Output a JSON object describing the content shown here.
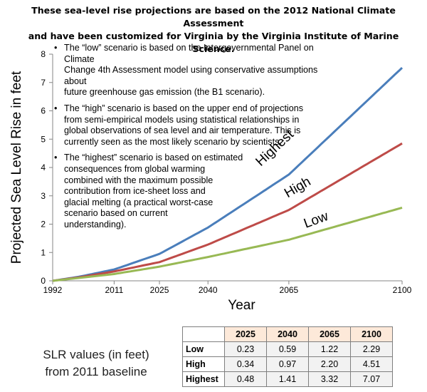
{
  "header": {
    "line1": "These sea-level rise projections are based on the 2012 National Climate Assessment",
    "line2": "and have been customized for Virginia by the Virginia Institute of Marine Science."
  },
  "notes": [
    {
      "bullet": "•",
      "text": "The “low” scenario is based on the Intergovernmental Panel on Climate\nChange 4th Assessment model using conservative assumptions about\nfuture greenhouse gas emission (the B1 scenario)."
    },
    {
      "bullet": "•",
      "text": "The “high” scenario is based on the upper end of projections\nfrom semi-empirical models using statistical relationships in\nglobal observations of sea level and air temperature. This is\ncurrently seen as the most likely scenario by scientists."
    },
    {
      "bullet": "•",
      "text": "The “highest” scenario is based on estimated\nconsequences from global warming\ncombined with the maximum possible\ncontribution from ice-sheet loss and\nglacial melting (a practical worst-case\n scenario based on current\nunderstanding)."
    }
  ],
  "chart_data": {
    "type": "line",
    "xlabel": "Year",
    "ylabel": "Projected Sea Level Rise in feet",
    "x_ticks": [
      "1992",
      "2011",
      "2025",
      "2040",
      "2065",
      "2100"
    ],
    "x_tick_years": [
      1992,
      2011,
      2025,
      2040,
      2065,
      2100
    ],
    "ylim": [
      0,
      8
    ],
    "y_ticks": [
      0,
      1,
      2,
      3,
      4,
      5,
      6,
      7,
      8
    ],
    "grid": false,
    "series": [
      {
        "name": "Highest",
        "color": "#4a7ebb",
        "x": [
          1992,
          2000,
          2011,
          2025,
          2040,
          2065,
          2100
        ],
        "y": [
          0,
          0.14,
          0.4,
          0.95,
          1.88,
          3.75,
          7.52
        ]
      },
      {
        "name": "High",
        "color": "#be4b48",
        "x": [
          1992,
          2000,
          2011,
          2025,
          2040,
          2065,
          2100
        ],
        "y": [
          0,
          0.12,
          0.33,
          0.66,
          1.28,
          2.5,
          4.85
        ]
      },
      {
        "name": "Low",
        "color": "#98b954",
        "x": [
          1992,
          2000,
          2011,
          2025,
          2040,
          2065,
          2100
        ],
        "y": [
          0,
          0.1,
          0.24,
          0.5,
          0.84,
          1.45,
          2.58
        ]
      }
    ]
  },
  "footer": {
    "line1": "SLR values (in feet)",
    "line2": "from 2011 baseline"
  },
  "table": {
    "headers": [
      "2025",
      "2040",
      "2065",
      "2100"
    ],
    "rows": [
      {
        "label": "Low",
        "values": [
          "0.23",
          "0.59",
          "1.22",
          "2.29"
        ]
      },
      {
        "label": "High",
        "values": [
          "0.34",
          "0.97",
          "2.20",
          "4.51"
        ]
      },
      {
        "label": "Highest",
        "values": [
          "0.48",
          "1.41",
          "3.32",
          "7.07"
        ]
      }
    ]
  }
}
